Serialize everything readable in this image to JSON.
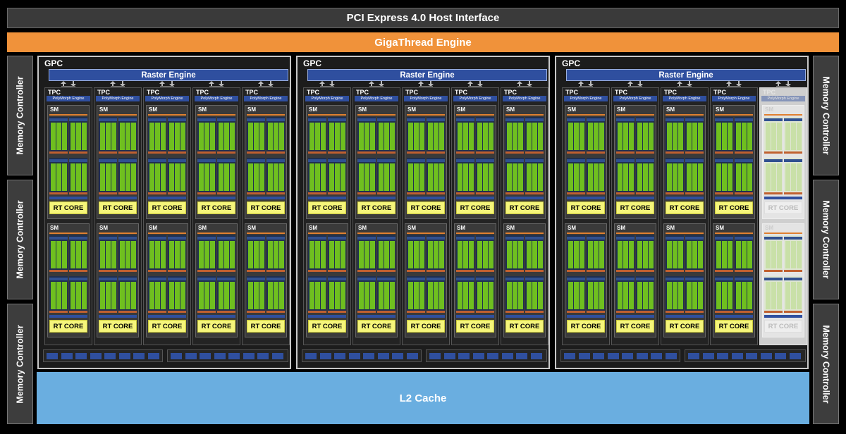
{
  "host_interface": "PCI Express 4.0 Host Interface",
  "gigathread": "GigaThread Engine",
  "l2_cache": "L2 Cache",
  "memory_controller": "Memory Controller",
  "gpc_label": "GPC",
  "raster_engine": "Raster Engine",
  "tpc_label": "TPC",
  "polymorph": "PolyMorph Engine",
  "sm_label": "SM",
  "rt_core": "RT CORE",
  "gpc_count": 3,
  "tpcs_per_gpc": 5,
  "sms_per_tpc": 2,
  "disabled_tpc": {
    "gpc": 3,
    "tpc": 5
  },
  "colors": {
    "background": "#000000",
    "host": "#3a3a3a",
    "gigathread": "#f0923a",
    "l2": "#6aaee0",
    "raster": "#2f4f9f",
    "cuda_cores": "#6fbf1f",
    "rt_core": "#f5f57a"
  }
}
